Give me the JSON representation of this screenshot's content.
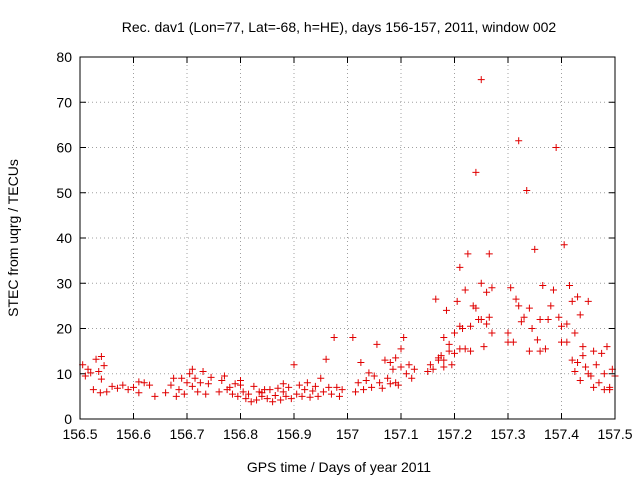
{
  "chart_data": {
    "type": "scatter",
    "title": "Rec. dav1 (Lon=77, Lat=-68, h=HE), days 156-157, 2011, window 002",
    "xlabel": "GPS time / Days of year 2011",
    "ylabel": "STEC from uqrg / TECUs",
    "xlim": [
      156.5,
      157.5
    ],
    "ylim": [
      0,
      80
    ],
    "x_ticks": [
      "156.5",
      "156.6",
      "156.7",
      "156.8",
      "156.9",
      "157",
      "157.1",
      "157.2",
      "157.3",
      "157.4",
      "157.5"
    ],
    "y_ticks": [
      "0",
      "10",
      "20",
      "30",
      "40",
      "50",
      "60",
      "70",
      "80"
    ],
    "grid": true,
    "marker": "plus",
    "color": "#e00000",
    "points": [
      [
        156.505,
        12.0
      ],
      [
        156.51,
        9.5
      ],
      [
        156.515,
        11.0
      ],
      [
        156.52,
        10.2
      ],
      [
        156.525,
        6.5
      ],
      [
        156.53,
        13.2
      ],
      [
        156.535,
        10.5
      ],
      [
        156.54,
        13.8
      ],
      [
        156.54,
        8.8
      ],
      [
        156.545,
        11.8
      ],
      [
        156.538,
        5.8
      ],
      [
        156.55,
        6.0
      ],
      [
        156.56,
        7.2
      ],
      [
        156.57,
        6.8
      ],
      [
        156.58,
        7.5
      ],
      [
        156.59,
        6.5
      ],
      [
        156.6,
        7.0
      ],
      [
        156.61,
        5.8
      ],
      [
        156.62,
        8.0
      ],
      [
        156.63,
        7.5
      ],
      [
        156.64,
        5.0
      ],
      [
        156.61,
        8.2
      ],
      [
        156.66,
        5.8
      ],
      [
        156.67,
        7.5
      ],
      [
        156.675,
        9.0
      ],
      [
        156.68,
        5.0
      ],
      [
        156.685,
        6.5
      ],
      [
        156.69,
        9.0
      ],
      [
        156.695,
        5.5
      ],
      [
        156.7,
        8.0
      ],
      [
        156.705,
        10.0
      ],
      [
        156.71,
        7.2
      ],
      [
        156.715,
        9.0
      ],
      [
        156.72,
        6.0
      ],
      [
        156.725,
        8.0
      ],
      [
        156.73,
        10.5
      ],
      [
        156.735,
        5.5
      ],
      [
        156.74,
        7.8
      ],
      [
        156.745,
        9.2
      ],
      [
        156.71,
        11.0
      ],
      [
        156.76,
        6.0
      ],
      [
        156.765,
        8.5
      ],
      [
        156.77,
        9.5
      ],
      [
        156.775,
        6.5
      ],
      [
        156.78,
        7.0
      ],
      [
        156.785,
        5.5
      ],
      [
        156.79,
        7.8
      ],
      [
        156.795,
        5.0
      ],
      [
        156.8,
        8.5
      ],
      [
        156.805,
        6.0
      ],
      [
        156.81,
        4.5
      ],
      [
        156.815,
        5.5
      ],
      [
        156.82,
        3.8
      ],
      [
        156.825,
        7.2
      ],
      [
        156.83,
        4.2
      ],
      [
        156.835,
        6.0
      ],
      [
        156.84,
        5.0
      ],
      [
        156.845,
        6.5
      ],
      [
        156.85,
        4.5
      ],
      [
        156.855,
        6.5
      ],
      [
        156.86,
        3.8
      ],
      [
        156.865,
        5.2
      ],
      [
        156.87,
        6.8
      ],
      [
        156.875,
        4.2
      ],
      [
        156.88,
        6.0
      ],
      [
        156.885,
        5.0
      ],
      [
        156.89,
        7.0
      ],
      [
        156.895,
        4.5
      ],
      [
        156.9,
        12.0
      ],
      [
        156.905,
        5.5
      ],
      [
        156.91,
        7.5
      ],
      [
        156.915,
        5.0
      ],
      [
        156.92,
        6.5
      ],
      [
        156.925,
        8.0
      ],
      [
        156.93,
        4.8
      ],
      [
        156.935,
        6.2
      ],
      [
        156.94,
        7.2
      ],
      [
        156.945,
        5.0
      ],
      [
        156.95,
        9.0
      ],
      [
        156.955,
        6.0
      ],
      [
        156.96,
        13.2
      ],
      [
        156.965,
        7.0
      ],
      [
        156.97,
        5.5
      ],
      [
        156.975,
        18.0
      ],
      [
        156.98,
        7.0
      ],
      [
        156.985,
        5.0
      ],
      [
        156.99,
        6.5
      ],
      [
        156.8,
        7.5
      ],
      [
        156.84,
        5.8
      ],
      [
        156.88,
        7.8
      ],
      [
        157.01,
        18.0
      ],
      [
        157.015,
        6.0
      ],
      [
        157.02,
        8.0
      ],
      [
        157.025,
        12.5
      ],
      [
        157.03,
        6.5
      ],
      [
        157.035,
        8.5
      ],
      [
        157.04,
        10.2
      ],
      [
        157.045,
        7.0
      ],
      [
        157.05,
        9.5
      ],
      [
        157.055,
        16.5
      ],
      [
        157.06,
        8.0
      ],
      [
        157.065,
        6.8
      ],
      [
        157.07,
        13.0
      ],
      [
        157.075,
        9.0
      ],
      [
        157.08,
        12.5
      ],
      [
        157.085,
        11.0
      ],
      [
        157.09,
        13.5
      ],
      [
        157.095,
        7.5
      ],
      [
        157.1,
        15.5
      ],
      [
        157.105,
        18.0
      ],
      [
        157.11,
        10.0
      ],
      [
        157.115,
        12.0
      ],
      [
        157.12,
        9.0
      ],
      [
        157.125,
        11.0
      ],
      [
        157.09,
        8.0
      ],
      [
        157.1,
        11.5
      ],
      [
        157.08,
        7.8
      ],
      [
        157.15,
        10.5
      ],
      [
        157.155,
        12.0
      ],
      [
        157.16,
        11.0
      ],
      [
        157.165,
        26.5
      ],
      [
        157.17,
        13.5
      ],
      [
        157.175,
        14.0
      ],
      [
        157.18,
        11.5
      ],
      [
        157.185,
        24.0
      ],
      [
        157.19,
        15.0
      ],
      [
        157.195,
        12.0
      ],
      [
        157.2,
        19.0
      ],
      [
        157.205,
        26.0
      ],
      [
        157.21,
        33.5
      ],
      [
        157.215,
        20.0
      ],
      [
        157.22,
        15.5
      ],
      [
        157.225,
        36.5
      ],
      [
        157.23,
        20.5
      ],
      [
        157.235,
        25.0
      ],
      [
        157.24,
        54.5
      ],
      [
        157.245,
        22.0
      ],
      [
        157.25,
        75.0
      ],
      [
        157.255,
        16.0
      ],
      [
        157.26,
        28.0
      ],
      [
        157.265,
        36.5
      ],
      [
        157.27,
        19.0
      ],
      [
        157.22,
        28.5
      ],
      [
        157.24,
        24.5
      ],
      [
        157.25,
        30.0
      ],
      [
        157.23,
        15.0
      ],
      [
        157.21,
        20.5
      ],
      [
        157.19,
        16.5
      ],
      [
        157.2,
        14.5
      ],
      [
        157.18,
        13.0
      ],
      [
        157.17,
        13.0
      ],
      [
        157.26,
        21.0
      ],
      [
        157.25,
        22.0
      ],
      [
        157.265,
        22.5
      ],
      [
        157.27,
        29.0
      ],
      [
        157.21,
        15.5
      ],
      [
        157.18,
        18.0
      ],
      [
        157.3,
        19.0
      ],
      [
        157.305,
        29.0
      ],
      [
        157.31,
        17.0
      ],
      [
        157.315,
        26.5
      ],
      [
        157.32,
        61.5
      ],
      [
        157.325,
        21.5
      ],
      [
        157.33,
        22.5
      ],
      [
        157.335,
        50.5
      ],
      [
        157.34,
        24.5
      ],
      [
        157.345,
        20.0
      ],
      [
        157.35,
        37.5
      ],
      [
        157.355,
        17.5
      ],
      [
        157.36,
        22.0
      ],
      [
        157.365,
        29.5
      ],
      [
        157.37,
        15.5
      ],
      [
        157.375,
        22.0
      ],
      [
        157.38,
        25.0
      ],
      [
        157.385,
        28.5
      ],
      [
        157.39,
        60.0
      ],
      [
        157.395,
        22.5
      ],
      [
        157.4,
        20.5
      ],
      [
        157.405,
        38.5
      ],
      [
        157.41,
        17.0
      ],
      [
        157.415,
        29.5
      ],
      [
        157.42,
        26.0
      ],
      [
        157.425,
        19.0
      ],
      [
        157.43,
        27.0
      ],
      [
        157.435,
        23.0
      ],
      [
        157.34,
        15.0
      ],
      [
        157.3,
        17.0
      ],
      [
        157.32,
        25.0
      ],
      [
        157.36,
        15.0
      ],
      [
        157.4,
        17.0
      ],
      [
        157.41,
        21.0
      ],
      [
        157.42,
        13.0
      ],
      [
        157.425,
        10.5
      ],
      [
        157.43,
        12.5
      ],
      [
        157.435,
        8.5
      ],
      [
        157.44,
        14.0
      ],
      [
        157.445,
        11.5
      ],
      [
        157.45,
        26.0
      ],
      [
        157.455,
        9.5
      ],
      [
        157.46,
        15.0
      ],
      [
        157.465,
        12.0
      ],
      [
        157.47,
        8.0
      ],
      [
        157.475,
        14.5
      ],
      [
        157.48,
        10.0
      ],
      [
        157.485,
        16.0
      ],
      [
        157.49,
        7.0
      ],
      [
        157.495,
        11.0
      ],
      [
        157.5,
        9.5
      ],
      [
        157.44,
        16.0
      ],
      [
        157.46,
        7.0
      ],
      [
        157.48,
        6.5
      ],
      [
        157.45,
        10.0
      ],
      [
        157.49,
        6.5
      ]
    ]
  }
}
